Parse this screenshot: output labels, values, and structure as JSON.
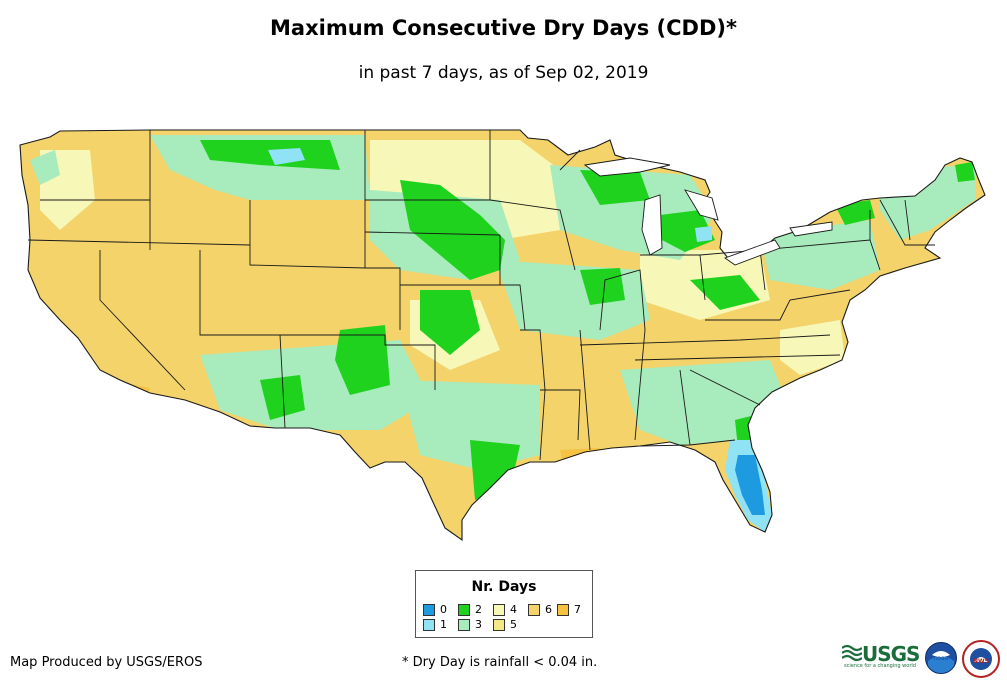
{
  "title": "Maximum Consecutive Dry Days (CDD)*",
  "subtitle": "in past 7 days, as of Sep 02, 2019",
  "legend": {
    "title": "Nr. Days",
    "items": [
      {
        "label": "0",
        "color": "#1e9ae0"
      },
      {
        "label": "1",
        "color": "#8fe3f5"
      },
      {
        "label": "2",
        "color": "#1ed21e"
      },
      {
        "label": "3",
        "color": "#a8ebbc"
      },
      {
        "label": "4",
        "color": "#f7f7b7"
      },
      {
        "label": "5",
        "color": "#f5e886"
      },
      {
        "label": "6",
        "color": "#f3d36a"
      },
      {
        "label": "7",
        "color": "#f5c242"
      }
    ]
  },
  "credit": "Map Produced by USGS/EROS",
  "footnote": "* Dry Day is rainfall < 0.04 in.",
  "logos": {
    "usgs": "USGS",
    "usgs_tagline": "science for a changing world",
    "noaa": "noaa",
    "nws": "NWS"
  },
  "icons": [
    "usgs-logo",
    "noaa-logo",
    "nws-logo"
  ]
}
